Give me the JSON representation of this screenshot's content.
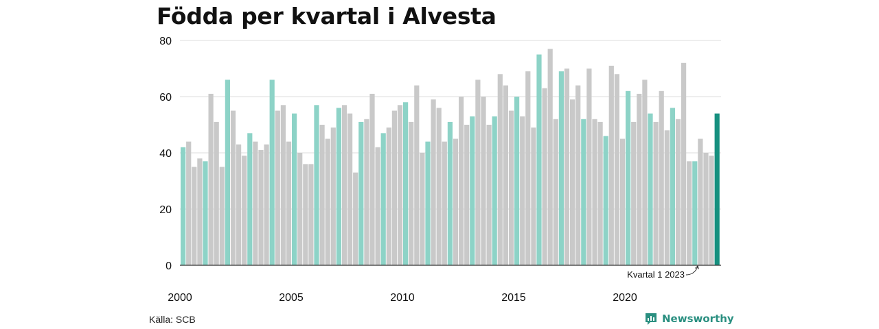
{
  "title": "Födda per kvartal i Alvesta",
  "source": "Källa: SCB",
  "brand": {
    "name": "Newsworthy",
    "icon": "chart-bars-logo-icon"
  },
  "colors": {
    "q1": "#8dd3c7",
    "other": "#c9c9c9",
    "highlight": "#16907f",
    "grid": "#dddddd",
    "axis": "#333333"
  },
  "chart_data": {
    "type": "bar",
    "title": "Födda per kvartal i Alvesta",
    "xlabel": "",
    "ylabel": "",
    "ylim": [
      0,
      80
    ],
    "yticks": [
      0,
      20,
      40,
      60,
      80
    ],
    "xticks": [
      2000,
      2005,
      2010,
      2015,
      2020
    ],
    "grid": true,
    "annotation": "Kvartal 1 2023",
    "values": [
      42,
      44,
      35,
      38,
      37,
      61,
      51,
      35,
      66,
      55,
      43,
      39,
      47,
      44,
      41,
      43,
      66,
      55,
      57,
      44,
      54,
      40,
      36,
      36,
      57,
      50,
      45,
      49,
      56,
      57,
      54,
      33,
      51,
      52,
      61,
      42,
      47,
      49,
      55,
      57,
      58,
      51,
      64,
      40,
      44,
      59,
      56,
      44,
      51,
      45,
      60,
      50,
      53,
      66,
      60,
      50,
      53,
      68,
      64,
      55,
      60,
      53,
      69,
      49,
      75,
      63,
      77,
      52,
      69,
      70,
      59,
      64,
      52,
      70,
      52,
      51,
      46,
      71,
      68,
      45,
      62,
      51,
      61,
      66,
      54,
      51,
      62,
      48,
      56,
      52,
      72,
      37,
      37,
      45,
      40,
      39,
      54
    ]
  }
}
